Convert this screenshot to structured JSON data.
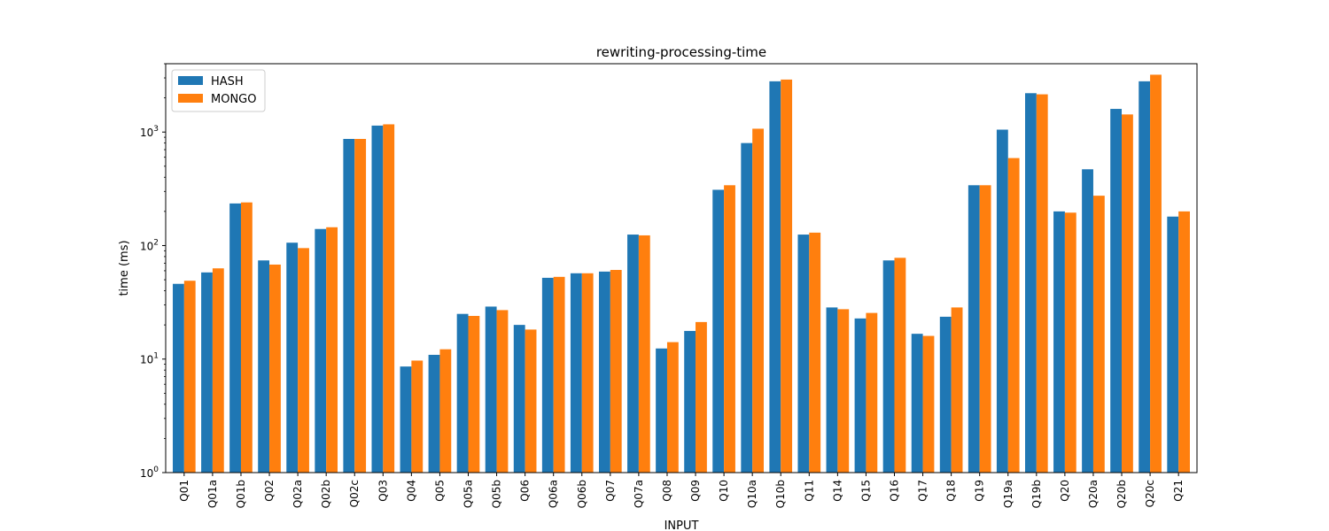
{
  "chart_data": {
    "type": "bar",
    "title": "rewriting-processing-time",
    "xlabel": "INPUT",
    "ylabel": "time (ms)",
    "yscale": "log",
    "ylim": [
      1,
      4000
    ],
    "y_ticks": [
      {
        "value": 1,
        "base": "10",
        "exp": "0"
      },
      {
        "value": 10,
        "base": "10",
        "exp": "1"
      },
      {
        "value": 100,
        "base": "10",
        "exp": "2"
      },
      {
        "value": 1000,
        "base": "10",
        "exp": "3"
      }
    ],
    "grid": false,
    "legend_position": "top-left",
    "categories": [
      "Q01",
      "Q01a",
      "Q01b",
      "Q02",
      "Q02a",
      "Q02b",
      "Q02c",
      "Q03",
      "Q04",
      "Q05",
      "Q05a",
      "Q05b",
      "Q06",
      "Q06a",
      "Q06b",
      "Q07",
      "Q07a",
      "Q08",
      "Q09",
      "Q10",
      "Q10a",
      "Q10b",
      "Q11",
      "Q14",
      "Q15",
      "Q16",
      "Q17",
      "Q18",
      "Q19",
      "Q19a",
      "Q19b",
      "Q20",
      "Q20a",
      "Q20b",
      "Q20c",
      "Q21"
    ],
    "series": [
      {
        "name": "HASH",
        "color": "#1f77b4",
        "values": [
          46,
          58,
          235,
          74,
          106,
          140,
          870,
          1140,
          8.6,
          10.9,
          25,
          29,
          20,
          52,
          57,
          59,
          125,
          12.4,
          17.7,
          310,
          800,
          2800,
          125,
          28.5,
          22.8,
          74,
          16.7,
          23.6,
          340,
          1050,
          2200,
          200,
          470,
          1600,
          2800,
          180
        ]
      },
      {
        "name": "MONGO",
        "color": "#ff7f0e",
        "values": [
          49,
          63,
          240,
          68,
          95,
          145,
          870,
          1170,
          9.7,
          12.2,
          24,
          27,
          18.2,
          53,
          57,
          61,
          123,
          14.1,
          21.2,
          340,
          1070,
          2900,
          130,
          27.5,
          25.5,
          78,
          16.0,
          28.5,
          340,
          590,
          2150,
          195,
          275,
          1430,
          3200,
          200
        ]
      }
    ]
  }
}
